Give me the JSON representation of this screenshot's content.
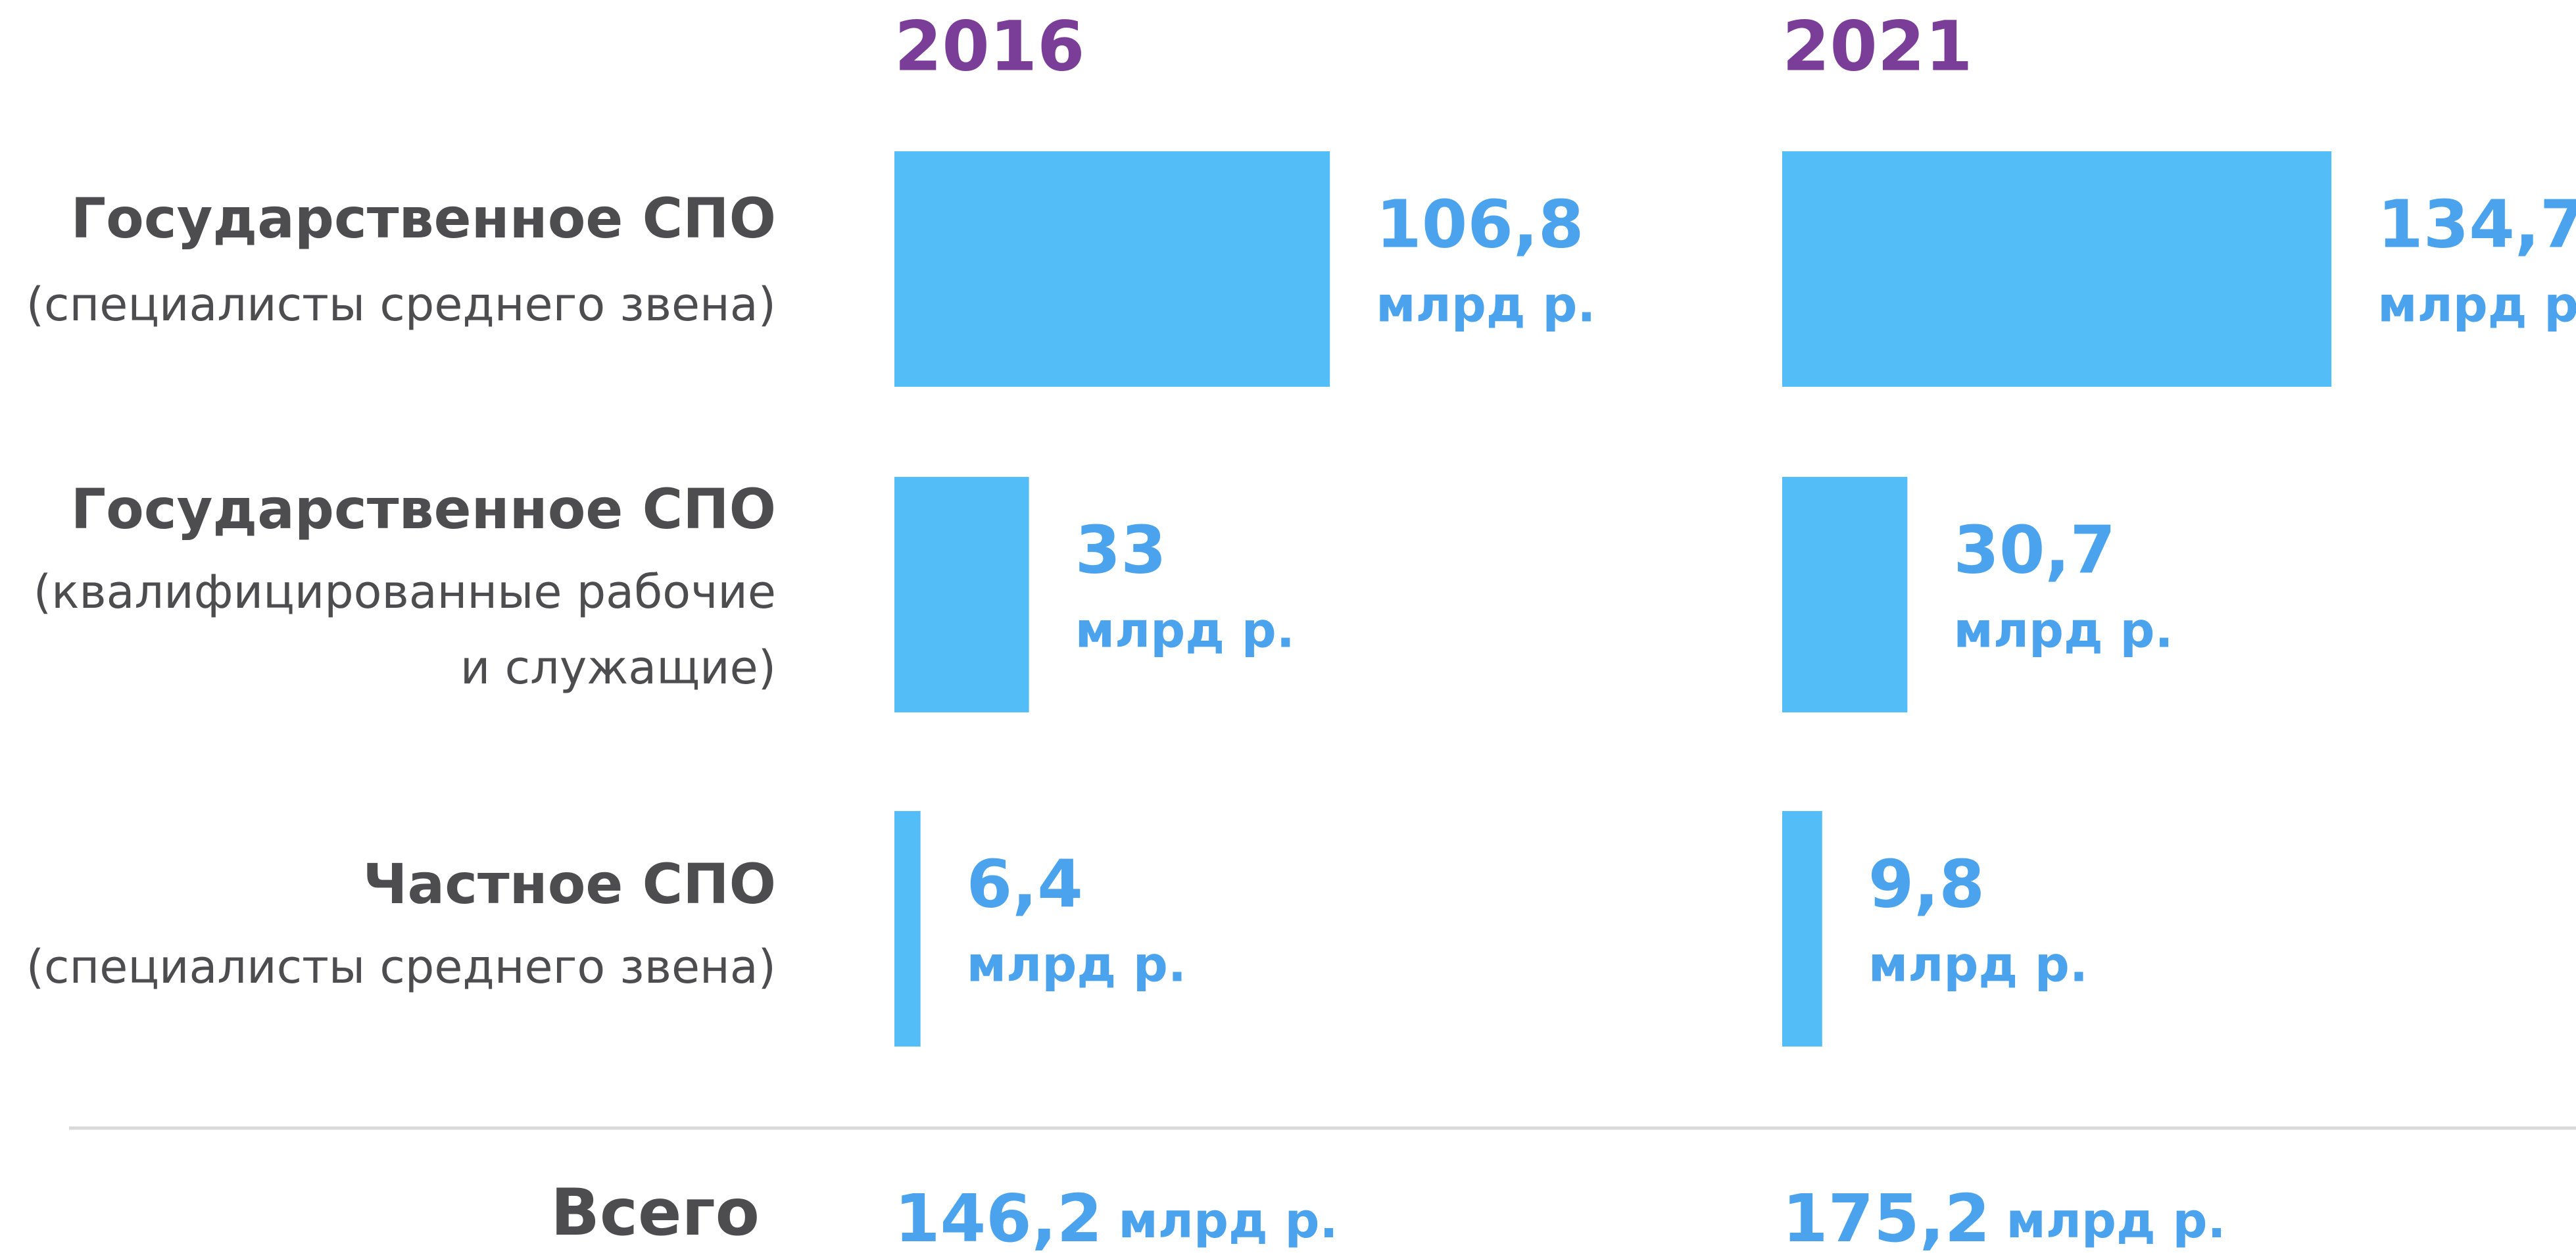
{
  "chart_data": {
    "type": "bar",
    "categories": [
      "Государственное СПО",
      "Государственное СПО",
      "Частное СПО"
    ],
    "category_notes": [
      [
        "(специалисты среднего звена)"
      ],
      [
        "(квалифицированные рабочие",
        "и служащие)"
      ],
      [
        "(специалисты среднего звена)"
      ]
    ],
    "unit": "млрд р.",
    "series": [
      {
        "name": "2016",
        "color": "#52bdf6",
        "values": [
          106.8,
          33,
          6.4
        ],
        "value_labels": [
          "106,8",
          "33",
          "6,4"
        ]
      },
      {
        "name": "2021",
        "color": "#52bdf6",
        "values": [
          134.7,
          30.7,
          9.8
        ],
        "value_labels": [
          "134,7",
          "30,7",
          "9,8"
        ]
      }
    ],
    "total_label": "Всего",
    "totals": [
      146.2,
      175.2
    ],
    "total_labels": [
      "146,2",
      "175,2"
    ]
  }
}
